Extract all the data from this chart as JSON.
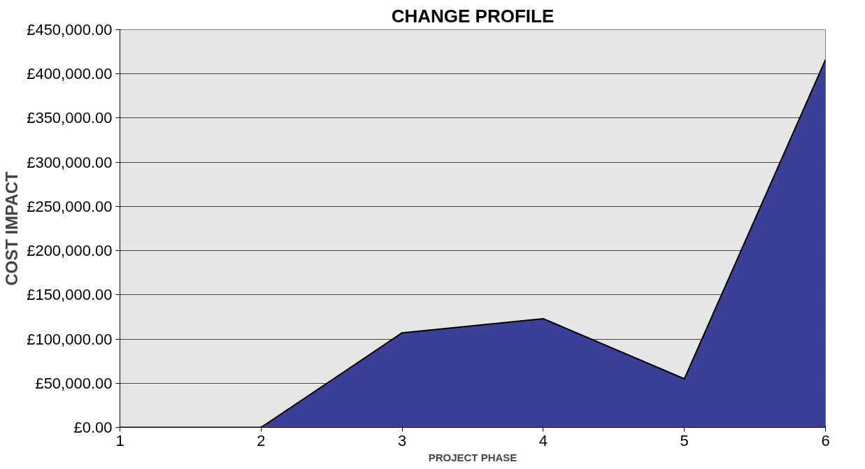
{
  "chart_data": {
    "type": "area",
    "title": "CHANGE PROFILE",
    "xlabel": "PROJECT PHASE",
    "ylabel": "COST IMPACT",
    "categories": [
      "1",
      "2",
      "3",
      "4",
      "5",
      "6"
    ],
    "series": [
      {
        "color": "#3b3f98",
        "values": [
          0,
          0,
          107000,
          123000,
          55000,
          416000
        ]
      }
    ],
    "ylim": [
      0,
      450000
    ],
    "yticks": [
      {
        "value": 0,
        "label": "£0.00"
      },
      {
        "value": 50000,
        "label": "£50,000.00"
      },
      {
        "value": 100000,
        "label": "£100,000.00"
      },
      {
        "value": 150000,
        "label": "£150,000.00"
      },
      {
        "value": 200000,
        "label": "£200,000.00"
      },
      {
        "value": 250000,
        "label": "£250,000.00"
      },
      {
        "value": 300000,
        "label": "£300,000.00"
      },
      {
        "value": 350000,
        "label": "£350,000.00"
      },
      {
        "value": 400000,
        "label": "£400,000.00"
      },
      {
        "value": 450000,
        "label": "£450,000.00"
      }
    ],
    "grid": "y"
  }
}
